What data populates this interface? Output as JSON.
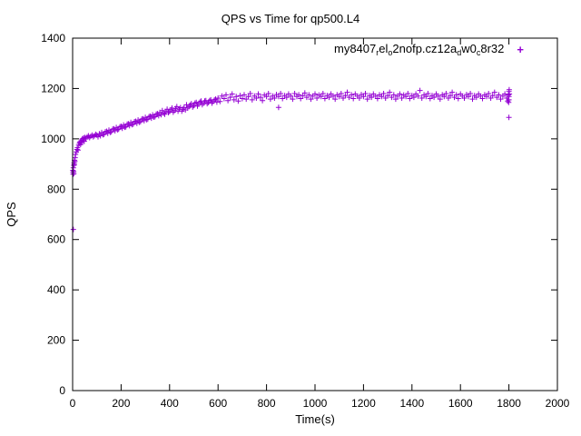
{
  "title": "QPS vs Time for qp500.L4",
  "xlabel": "Time(s)",
  "ylabel": "QPS",
  "colors": {
    "series": "#9400d3",
    "text": "#000000",
    "border": "#000000"
  },
  "axes": {
    "x": {
      "min": 0,
      "max": 2000,
      "step": 200
    },
    "y": {
      "min": 0,
      "max": 1400,
      "step": 200
    }
  },
  "legend": {
    "marker": "+",
    "parts": [
      {
        "t": "my8407"
      },
      {
        "s": "r"
      },
      {
        "t": "el"
      },
      {
        "s": "o"
      },
      {
        "t": "2nofp.cz12a"
      },
      {
        "s": "d"
      },
      {
        "t": "w0"
      },
      {
        "s": "c"
      },
      {
        "t": "8r32"
      }
    ]
  },
  "chart_data": {
    "type": "scatter",
    "title": "QPS vs Time for qp500.L4",
    "xlabel": "Time(s)",
    "ylabel": "QPS",
    "xlim": [
      0,
      2000
    ],
    "ylim": [
      0,
      1400
    ],
    "grid": false,
    "legend_position": "top-right-inside",
    "series": [
      {
        "name": "my8407_rel_o2nofp.cz12a_dw0_c8r32",
        "marker": "+",
        "color": "#9400d3",
        "points": [
          [
            1,
            875
          ],
          [
            2,
            860
          ],
          [
            2,
            868
          ],
          [
            3,
            640
          ],
          [
            3,
            885
          ],
          [
            4,
            870
          ],
          [
            5,
            862
          ],
          [
            5,
            895
          ],
          [
            6,
            905
          ],
          [
            7,
            898
          ],
          [
            8,
            915
          ],
          [
            9,
            910
          ],
          [
            10,
            925
          ],
          [
            12,
            938
          ],
          [
            15,
            948
          ],
          [
            18,
            958
          ],
          [
            20,
            965
          ],
          [
            22,
            955
          ],
          [
            25,
            975
          ],
          [
            28,
            982
          ],
          [
            30,
            988
          ],
          [
            33,
            978
          ],
          [
            35,
            992
          ],
          [
            38,
            985
          ],
          [
            40,
            1000
          ],
          [
            43,
            995
          ],
          [
            45,
            1003
          ],
          [
            48,
            990
          ],
          [
            50,
            1006
          ],
          [
            55,
            1000
          ],
          [
            60,
            1008
          ],
          [
            65,
            1012
          ],
          [
            70,
            1005
          ],
          [
            75,
            1010
          ],
          [
            80,
            1015
          ],
          [
            85,
            1008
          ],
          [
            90,
            1012
          ],
          [
            95,
            1018
          ],
          [
            100,
            1015
          ],
          [
            105,
            1008
          ],
          [
            110,
            1020
          ],
          [
            115,
            1012
          ],
          [
            120,
            1025
          ],
          [
            125,
            1016
          ],
          [
            130,
            1018
          ],
          [
            135,
            1028
          ],
          [
            140,
            1030
          ],
          [
            145,
            1022
          ],
          [
            150,
            1035
          ],
          [
            155,
            1026
          ],
          [
            160,
            1028
          ],
          [
            165,
            1038
          ],
          [
            170,
            1040
          ],
          [
            175,
            1032
          ],
          [
            180,
            1045
          ],
          [
            185,
            1036
          ],
          [
            190,
            1038
          ],
          [
            195,
            1048
          ],
          [
            200,
            1050
          ],
          [
            205,
            1042
          ],
          [
            210,
            1055
          ],
          [
            215,
            1046
          ],
          [
            220,
            1048
          ],
          [
            225,
            1058
          ],
          [
            230,
            1060
          ],
          [
            235,
            1052
          ],
          [
            240,
            1065
          ],
          [
            245,
            1056
          ],
          [
            250,
            1058
          ],
          [
            255,
            1068
          ],
          [
            260,
            1070
          ],
          [
            265,
            1062
          ],
          [
            270,
            1075
          ],
          [
            275,
            1066
          ],
          [
            280,
            1068
          ],
          [
            285,
            1078
          ],
          [
            290,
            1080
          ],
          [
            295,
            1072
          ],
          [
            300,
            1085
          ],
          [
            305,
            1076
          ],
          [
            310,
            1078
          ],
          [
            315,
            1088
          ],
          [
            320,
            1090
          ],
          [
            325,
            1082
          ],
          [
            330,
            1095
          ],
          [
            335,
            1086
          ],
          [
            340,
            1088
          ],
          [
            345,
            1098
          ],
          [
            350,
            1100
          ],
          [
            355,
            1092
          ],
          [
            360,
            1105
          ],
          [
            365,
            1096
          ],
          [
            370,
            1112
          ],
          [
            375,
            1102
          ],
          [
            380,
            1098
          ],
          [
            385,
            1108
          ],
          [
            390,
            1118
          ],
          [
            395,
            1104
          ],
          [
            400,
            1108
          ],
          [
            405,
            1116
          ],
          [
            410,
            1122
          ],
          [
            415,
            1106
          ],
          [
            420,
            1112
          ],
          [
            425,
            1120
          ],
          [
            430,
            1128
          ],
          [
            435,
            1110
          ],
          [
            440,
            1118
          ],
          [
            445,
            1124
          ],
          [
            450,
            1110
          ],
          [
            455,
            1118
          ],
          [
            460,
            1125
          ],
          [
            465,
            1115
          ],
          [
            470,
            1135
          ],
          [
            475,
            1122
          ],
          [
            480,
            1128
          ],
          [
            485,
            1134
          ],
          [
            490,
            1140
          ],
          [
            495,
            1126
          ],
          [
            500,
            1132
          ],
          [
            505,
            1142
          ],
          [
            510,
            1145
          ],
          [
            515,
            1130
          ],
          [
            520,
            1138
          ],
          [
            525,
            1146
          ],
          [
            530,
            1150
          ],
          [
            535,
            1136
          ],
          [
            540,
            1142
          ],
          [
            545,
            1150
          ],
          [
            550,
            1152
          ],
          [
            555,
            1140
          ],
          [
            560,
            1145
          ],
          [
            565,
            1152
          ],
          [
            570,
            1155
          ],
          [
            575,
            1142
          ],
          [
            580,
            1148
          ],
          [
            585,
            1155
          ],
          [
            590,
            1158
          ],
          [
            595,
            1146
          ],
          [
            600,
            1162
          ],
          [
            608,
            1148
          ],
          [
            616,
            1170
          ],
          [
            625,
            1160
          ],
          [
            633,
            1175
          ],
          [
            641,
            1152
          ],
          [
            650,
            1165
          ],
          [
            658,
            1178
          ],
          [
            666,
            1155
          ],
          [
            675,
            1168
          ],
          [
            683,
            1150
          ],
          [
            691,
            1172
          ],
          [
            700,
            1160
          ],
          [
            708,
            1175
          ],
          [
            716,
            1158
          ],
          [
            725,
            1168
          ],
          [
            733,
            1180
          ],
          [
            741,
            1155
          ],
          [
            750,
            1170
          ],
          [
            758,
            1162
          ],
          [
            766,
            1178
          ],
          [
            775,
            1165
          ],
          [
            783,
            1152
          ],
          [
            791,
            1174
          ],
          [
            800,
            1168
          ],
          [
            808,
            1180
          ],
          [
            816,
            1158
          ],
          [
            825,
            1170
          ],
          [
            833,
            1162
          ],
          [
            841,
            1176
          ],
          [
            850,
            1125
          ],
          [
            850,
            1168
          ],
          [
            858,
            1180
          ],
          [
            866,
            1160
          ],
          [
            875,
            1172
          ],
          [
            883,
            1165
          ],
          [
            891,
            1178
          ],
          [
            900,
            1170
          ],
          [
            908,
            1158
          ],
          [
            916,
            1180
          ],
          [
            925,
            1168
          ],
          [
            933,
            1175
          ],
          [
            941,
            1160
          ],
          [
            950,
            1172
          ],
          [
            958,
            1182
          ],
          [
            966,
            1165
          ],
          [
            975,
            1175
          ],
          [
            983,
            1158
          ],
          [
            991,
            1170
          ],
          [
            1000,
            1178
          ],
          [
            1008,
            1162
          ],
          [
            1016,
            1174
          ],
          [
            1025,
            1168
          ],
          [
            1033,
            1180
          ],
          [
            1041,
            1160
          ],
          [
            1050,
            1172
          ],
          [
            1058,
            1165
          ],
          [
            1066,
            1178
          ],
          [
            1075,
            1170
          ],
          [
            1083,
            1158
          ],
          [
            1091,
            1175
          ],
          [
            1100,
            1168
          ],
          [
            1108,
            1180
          ],
          [
            1116,
            1162
          ],
          [
            1125,
            1172
          ],
          [
            1133,
            1185
          ],
          [
            1141,
            1165
          ],
          [
            1150,
            1175
          ],
          [
            1158,
            1160
          ],
          [
            1166,
            1178
          ],
          [
            1175,
            1170
          ],
          [
            1183,
            1162
          ],
          [
            1191,
            1176
          ],
          [
            1200,
            1168
          ],
          [
            1208,
            1180
          ],
          [
            1216,
            1158
          ],
          [
            1225,
            1172
          ],
          [
            1233,
            1165
          ],
          [
            1241,
            1178
          ],
          [
            1250,
            1170
          ],
          [
            1258,
            1160
          ],
          [
            1266,
            1175
          ],
          [
            1275,
            1168
          ],
          [
            1283,
            1180
          ],
          [
            1291,
            1162
          ],
          [
            1300,
            1172
          ],
          [
            1308,
            1185
          ],
          [
            1316,
            1165
          ],
          [
            1325,
            1175
          ],
          [
            1333,
            1158
          ],
          [
            1341,
            1170
          ],
          [
            1350,
            1178
          ],
          [
            1358,
            1162
          ],
          [
            1366,
            1174
          ],
          [
            1375,
            1168
          ],
          [
            1383,
            1180
          ],
          [
            1391,
            1160
          ],
          [
            1400,
            1172
          ],
          [
            1408,
            1165
          ],
          [
            1416,
            1178
          ],
          [
            1425,
            1170
          ],
          [
            1433,
            1192
          ],
          [
            1441,
            1162
          ],
          [
            1450,
            1175
          ],
          [
            1458,
            1168
          ],
          [
            1466,
            1180
          ],
          [
            1475,
            1160
          ],
          [
            1483,
            1172
          ],
          [
            1491,
            1165
          ],
          [
            1500,
            1178
          ],
          [
            1508,
            1170
          ],
          [
            1516,
            1158
          ],
          [
            1525,
            1175
          ],
          [
            1533,
            1168
          ],
          [
            1541,
            1180
          ],
          [
            1550,
            1162
          ],
          [
            1558,
            1172
          ],
          [
            1566,
            1185
          ],
          [
            1575,
            1165
          ],
          [
            1583,
            1175
          ],
          [
            1591,
            1160
          ],
          [
            1600,
            1178
          ],
          [
            1608,
            1170
          ],
          [
            1616,
            1162
          ],
          [
            1625,
            1176
          ],
          [
            1633,
            1168
          ],
          [
            1641,
            1180
          ],
          [
            1650,
            1158
          ],
          [
            1658,
            1172
          ],
          [
            1666,
            1165
          ],
          [
            1675,
            1178
          ],
          [
            1683,
            1170
          ],
          [
            1691,
            1160
          ],
          [
            1700,
            1175
          ],
          [
            1708,
            1168
          ],
          [
            1716,
            1180
          ],
          [
            1725,
            1162
          ],
          [
            1733,
            1172
          ],
          [
            1741,
            1185
          ],
          [
            1750,
            1165
          ],
          [
            1758,
            1175
          ],
          [
            1766,
            1158
          ],
          [
            1775,
            1170
          ],
          [
            1783,
            1178
          ],
          [
            1791,
            1162
          ],
          [
            1795,
            1150
          ],
          [
            1798,
            1174
          ],
          [
            1799,
            1145
          ],
          [
            1800,
            1188
          ],
          [
            1800,
            1168
          ],
          [
            1800,
            1085
          ],
          [
            1800,
            1155
          ],
          [
            1801,
            1195
          ],
          [
            1802,
            1178
          ]
        ]
      }
    ]
  }
}
